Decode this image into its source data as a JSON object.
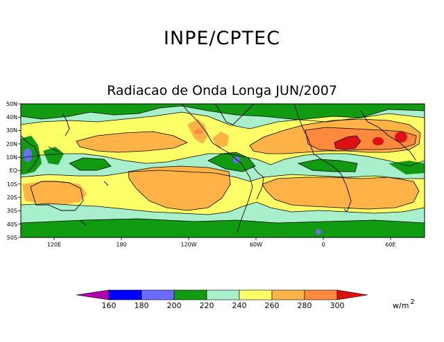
{
  "header": {
    "title": "INPE/CPTEC",
    "subtitle": "Radiacao de Onda Longa JUN/2007"
  },
  "axes": {
    "lat_labels": [
      "50N",
      "40N",
      "30N",
      "20N",
      "10N",
      "EQ",
      "10S",
      "20S",
      "30S",
      "40S",
      "50S"
    ],
    "lon_labels": [
      "120E",
      "180",
      "120W",
      "60W",
      "0",
      "60E"
    ]
  },
  "colorbar": {
    "levels": [
      "160",
      "180",
      "200",
      "220",
      "240",
      "260",
      "280",
      "300"
    ],
    "colors": [
      "#b000b0",
      "#0000ff",
      "#6b6bff",
      "#119b11",
      "#a8f0cc",
      "#ffff66",
      "#ffb347",
      "#ff8a3d",
      "#dd1111"
    ],
    "unit_base": "w/m",
    "unit_exp": "2"
  },
  "palette": {
    "green": "#119b11",
    "mint": "#a8f0cc",
    "yellow": "#ffff66",
    "light_orange": "#ffb347",
    "orange": "#ff8a3d",
    "red": "#dd1111",
    "blue": "#6b6bff"
  }
}
